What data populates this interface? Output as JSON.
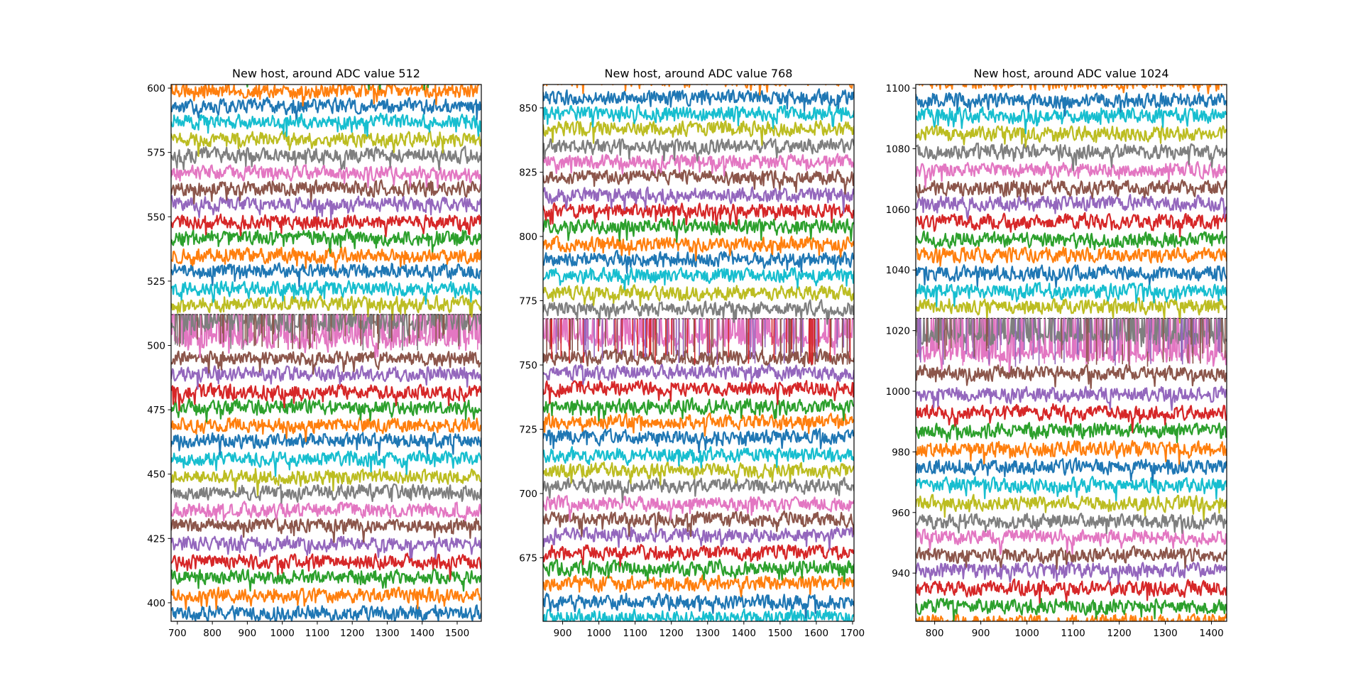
{
  "figure": {
    "background": "#ffffff"
  },
  "palette": [
    "#1f77b4",
    "#ff7f0e",
    "#2ca02c",
    "#d62728",
    "#9467bd",
    "#8c564b",
    "#e377c2",
    "#7f7f7f",
    "#bcbd22",
    "#17becf"
  ],
  "chart_data": [
    {
      "type": "line",
      "title": "New host, around ADC value 512",
      "xlabel": "",
      "ylabel": "",
      "xlim": [
        682,
        1569
      ],
      "ylim": [
        392.8,
        601.4
      ],
      "xticks": [
        700,
        800,
        900,
        1000,
        1100,
        1200,
        1300,
        1400,
        1500
      ],
      "yticks": [
        400,
        425,
        450,
        475,
        500,
        525,
        550,
        575,
        600
      ],
      "threshold": 512,
      "legend": "none",
      "grid": false,
      "series_description": "Stacked noisy traces, one per channel, offset bands in matplotlib tab10 color cycle",
      "band_start_color_index": 0,
      "band_centers": [
        396,
        403,
        410,
        416,
        423,
        430,
        436,
        443,
        449,
        456,
        463,
        469,
        476,
        482,
        489,
        495,
        502,
        508,
        516,
        522,
        529,
        535,
        542,
        548,
        555,
        561,
        567,
        574,
        580,
        587,
        593,
        599,
        605
      ],
      "spike_bands_near_threshold": [
        "brown",
        "pink",
        "gray"
      ],
      "noise_amplitude": 3
    },
    {
      "type": "line",
      "title": "New host, around ADC value 768",
      "xlabel": "",
      "ylabel": "",
      "xlim": [
        846,
        1704
      ],
      "ylim": [
        650.3,
        859.1
      ],
      "xticks": [
        900,
        1000,
        1100,
        1200,
        1300,
        1400,
        1500,
        1600,
        1700
      ],
      "yticks": [
        675,
        700,
        725,
        750,
        775,
        800,
        825,
        850
      ],
      "threshold": 768,
      "legend": "none",
      "grid": false,
      "band_start_color_index": 9,
      "band_centers": [
        652,
        658,
        665,
        671,
        677,
        684,
        690,
        696,
        703,
        709,
        715,
        722,
        728,
        734,
        741,
        747,
        753,
        760,
        772,
        778,
        785,
        791,
        797,
        804,
        810,
        816,
        823,
        829,
        835,
        842,
        848,
        854,
        861
      ],
      "spike_bands_near_threshold": [
        "purple",
        "brown",
        "red"
      ],
      "noise_amplitude": 3
    },
    {
      "type": "line",
      "title": "New host, around ADC value 1024",
      "xlabel": "",
      "ylabel": "",
      "xlim": [
        759,
        1433
      ],
      "ylim": [
        924.1,
        1101.2
      ],
      "xticks": [
        800,
        900,
        1000,
        1100,
        1200,
        1300,
        1400
      ],
      "yticks": [
        940,
        960,
        980,
        1000,
        1020,
        1040,
        1060,
        1080,
        1100
      ],
      "threshold": 1024,
      "legend": "none",
      "grid": false,
      "band_start_color_index": 1,
      "band_centers": [
        924,
        929,
        935,
        941,
        946,
        952,
        957,
        963,
        969,
        975,
        981,
        987,
        993,
        999,
        1006,
        1012,
        1018,
        1028,
        1033,
        1039,
        1045,
        1050,
        1056,
        1062,
        1067,
        1073,
        1079,
        1085,
        1091,
        1096,
        1102
      ],
      "spike_bands_near_threshold": [
        "purple",
        "brown",
        "pink"
      ],
      "noise_amplitude": 2.6
    }
  ]
}
